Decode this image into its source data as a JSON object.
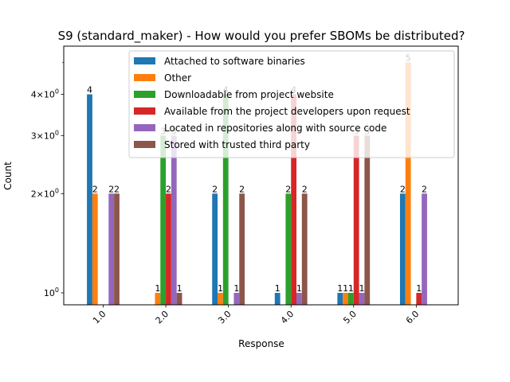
{
  "chart_data": {
    "type": "bar",
    "title": "S9 (standard_maker) - How would you prefer SBOMs be distributed?",
    "xlabel": "Response",
    "ylabel": "Count",
    "yscale": "log",
    "ylim": [
      0.92,
      5.6
    ],
    "yticks": [
      {
        "value": 1,
        "label": "10^0",
        "base": "10",
        "exp": "0"
      },
      {
        "value": 2,
        "label": "2×10^0",
        "base": "2×10",
        "exp": "0"
      },
      {
        "value": 3,
        "label": "3×10^0",
        "base": "3×10",
        "exp": "0"
      },
      {
        "value": 4,
        "label": "4×10^0",
        "base": "4×10",
        "exp": "0"
      }
    ],
    "categories": [
      "1.0",
      "2.0",
      "3.0",
      "4.0",
      "5.0",
      "6.0"
    ],
    "legend_position": "top-center",
    "grid": false,
    "series": [
      {
        "name": "Attached to software binaries",
        "color": "#1f77b4",
        "values": [
          4,
          null,
          2,
          1,
          1,
          2
        ]
      },
      {
        "name": "Other",
        "color": "#ff7f0e",
        "values": [
          2,
          1,
          1,
          null,
          1,
          5
        ]
      },
      {
        "name": "Downloadable from project website",
        "color": "#2ca02c",
        "values": [
          null,
          3,
          4,
          2,
          1,
          null
        ]
      },
      {
        "name": "Available from the project developers upon request",
        "color": "#d62728",
        "values": [
          null,
          2,
          null,
          4,
          3,
          1
        ]
      },
      {
        "name": "Located in repositories along with source code",
        "color": "#9467bd",
        "values": [
          2,
          3,
          1,
          1,
          1,
          2
        ]
      },
      {
        "name": "Stored with trusted third party",
        "color": "#8c564b",
        "values": [
          2,
          1,
          2,
          2,
          3,
          null
        ]
      }
    ]
  }
}
